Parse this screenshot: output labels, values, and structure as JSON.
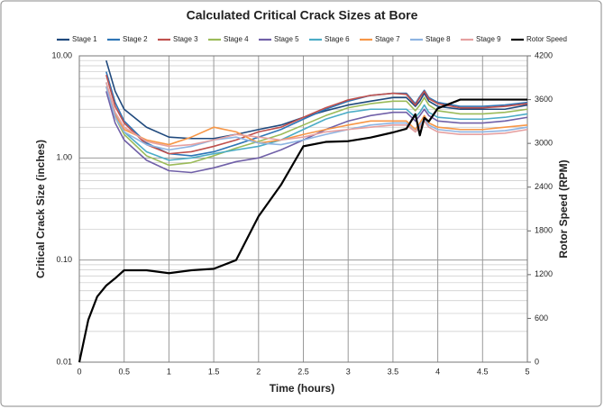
{
  "chart_data": {
    "type": "line",
    "title": "Calculated Critical Crack Sizes at Bore",
    "x_label": "Time (hours)",
    "y_label": "Critical Crack Size (inches)",
    "y2_label": "Rotor Speed (RPM)",
    "x": [
      0,
      0.1,
      0.2,
      0.3,
      0.4,
      0.5,
      0.75,
      1,
      1.25,
      1.5,
      1.75,
      2,
      2.25,
      2.5,
      2.75,
      3,
      3.25,
      3.5,
      3.65,
      3.75,
      3.8,
      3.85,
      3.9,
      4,
      4.25,
      4.5,
      4.75,
      5
    ],
    "xlim": [
      0,
      5
    ],
    "xticks": [
      0,
      0.5,
      1,
      1.5,
      2,
      2.5,
      3,
      3.5,
      4,
      4.5,
      5
    ],
    "ylim": [
      0.01,
      10
    ],
    "yticks": [
      0.01,
      {
        "value": 0.1,
        "label": "0.10"
      },
      {
        "value": 1,
        "label": "1.00"
      },
      {
        "value": 10,
        "label": "10.00"
      }
    ],
    "y_scale": "log",
    "y2lim": [
      0,
      4200
    ],
    "y2ticks": [
      0,
      600,
      1200,
      1800,
      2400,
      3000,
      3600,
      4200
    ],
    "grid": true,
    "minor_grid": true,
    "legend": "top",
    "series": [
      {
        "name": "Stage 1",
        "color": "#1f497d",
        "values": [
          null,
          null,
          null,
          9,
          4.5,
          3,
          2.0,
          1.6,
          1.55,
          1.55,
          1.7,
          1.9,
          2.1,
          2.5,
          2.9,
          3.3,
          3.6,
          3.9,
          3.9,
          3.2,
          3.6,
          4.3,
          3.6,
          3.2,
          3.0,
          3.0,
          3.0,
          3.3
        ]
      },
      {
        "name": "Stage 2",
        "color": "#2e75b6",
        "values": [
          null,
          null,
          null,
          7,
          3.5,
          2.3,
          1.4,
          1.1,
          1.05,
          1.15,
          1.35,
          1.6,
          1.9,
          2.4,
          3.0,
          3.6,
          4.1,
          4.3,
          4.3,
          3.4,
          4.0,
          4.6,
          3.9,
          3.5,
          3.2,
          3.2,
          3.3,
          3.5
        ]
      },
      {
        "name": "Stage 3",
        "color": "#c0504d",
        "values": [
          null,
          null,
          null,
          6.5,
          3.2,
          2.2,
          1.35,
          1.1,
          1.15,
          1.3,
          1.5,
          1.8,
          2.0,
          2.5,
          3.1,
          3.7,
          4.1,
          4.3,
          4.2,
          3.3,
          3.9,
          4.5,
          3.8,
          3.4,
          3.1,
          3.1,
          3.2,
          3.4
        ]
      },
      {
        "name": "Stage 4",
        "color": "#9bbb59",
        "values": [
          null,
          null,
          null,
          5,
          2.5,
          1.7,
          1.05,
          0.85,
          0.9,
          1.05,
          1.25,
          1.45,
          1.7,
          2.1,
          2.6,
          3.1,
          3.4,
          3.6,
          3.6,
          2.9,
          3.3,
          3.9,
          3.3,
          2.9,
          2.7,
          2.7,
          2.8,
          3.0
        ]
      },
      {
        "name": "Stage 5",
        "color": "#7060a8",
        "values": [
          null,
          null,
          null,
          4.5,
          2.2,
          1.5,
          0.95,
          0.75,
          0.72,
          0.8,
          0.92,
          1.0,
          1.2,
          1.5,
          1.9,
          2.3,
          2.6,
          2.8,
          2.8,
          2.3,
          2.6,
          3.0,
          2.6,
          2.3,
          2.2,
          2.2,
          2.3,
          2.5
        ]
      },
      {
        "name": "Stage 6",
        "color": "#4bacc6",
        "values": [
          null,
          null,
          null,
          5.5,
          2.7,
          1.8,
          1.15,
          0.95,
          1.0,
          1.1,
          1.2,
          1.3,
          1.5,
          1.9,
          2.4,
          2.8,
          3.0,
          3.0,
          3.0,
          2.5,
          2.8,
          3.3,
          2.8,
          2.5,
          2.4,
          2.4,
          2.5,
          2.7
        ]
      },
      {
        "name": "Stage 7",
        "color": "#f79646",
        "values": [
          null,
          null,
          null,
          5,
          2.6,
          1.9,
          1.5,
          1.35,
          1.6,
          2.0,
          1.8,
          1.4,
          1.5,
          1.7,
          1.9,
          2.1,
          2.3,
          2.3,
          2.3,
          1.9,
          2.2,
          2.6,
          2.2,
          2.0,
          1.9,
          1.9,
          2.0,
          2.1
        ]
      },
      {
        "name": "Stage 8",
        "color": "#8db4e2",
        "values": [
          null,
          null,
          null,
          5,
          2.5,
          1.8,
          1.35,
          1.2,
          1.3,
          1.5,
          1.6,
          1.4,
          1.35,
          1.5,
          1.7,
          1.9,
          2.1,
          2.2,
          2.2,
          1.8,
          2.1,
          2.4,
          2.1,
          1.9,
          1.8,
          1.8,
          1.85,
          2.0
        ]
      },
      {
        "name": "Stage 9",
        "color": "#e6a0a0",
        "values": [
          null,
          null,
          null,
          5.5,
          2.8,
          2.0,
          1.45,
          1.3,
          1.35,
          1.5,
          1.7,
          1.6,
          1.5,
          1.6,
          1.8,
          1.9,
          2.0,
          2.1,
          2.1,
          1.8,
          2.0,
          2.3,
          2.0,
          1.8,
          1.7,
          1.7,
          1.75,
          1.9
        ]
      },
      {
        "name": "Rotor Speed",
        "color": "#000000",
        "axis": "y2",
        "values": [
          0,
          580,
          900,
          1050,
          1150,
          1260,
          1260,
          1220,
          1260,
          1280,
          1400,
          2000,
          2430,
          2960,
          3020,
          3030,
          3080,
          3150,
          3200,
          3400,
          3110,
          3350,
          3300,
          3480,
          3600,
          3600,
          3600,
          3600
        ]
      }
    ]
  }
}
